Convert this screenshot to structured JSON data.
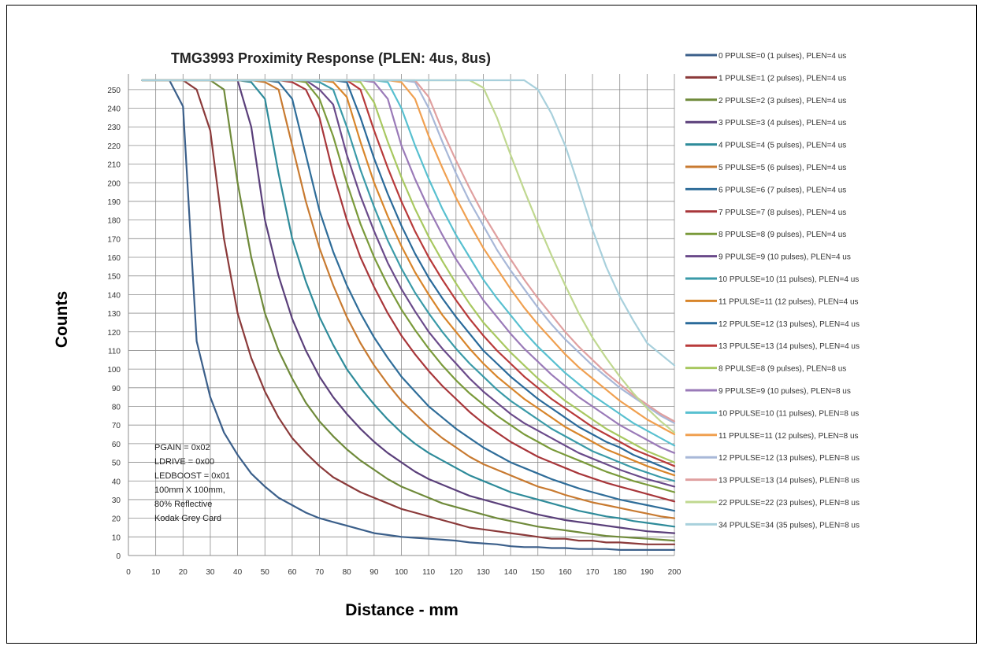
{
  "chart_data": {
    "type": "line",
    "title": "TMG3993 Proximity Response (PLEN: 4us, 8us)",
    "xlabel": "Distance - mm",
    "ylabel": "Counts",
    "xlim": [
      0,
      200
    ],
    "ylim": [
      0,
      255
    ],
    "x_ticks": [
      0,
      10,
      20,
      30,
      40,
      50,
      60,
      70,
      80,
      90,
      100,
      110,
      120,
      130,
      140,
      150,
      160,
      170,
      180,
      190,
      200
    ],
    "y_ticks": [
      0,
      10,
      20,
      30,
      40,
      50,
      60,
      70,
      80,
      90,
      100,
      110,
      120,
      130,
      140,
      150,
      160,
      170,
      180,
      190,
      200,
      210,
      220,
      230,
      240,
      250
    ],
    "grid": true,
    "legend_position": "right",
    "annotation": [
      "PGAIN = 0x02",
      "LDRIVE = 0x00",
      "LEDBOOST = 0x01",
      "100mm X 100mm,",
      "80% Reflective",
      "Kodak Grey Card"
    ],
    "x": [
      5,
      10,
      15,
      20,
      25,
      30,
      35,
      40,
      45,
      50,
      55,
      60,
      65,
      70,
      75,
      80,
      85,
      90,
      95,
      100,
      105,
      110,
      115,
      120,
      125,
      130,
      135,
      140,
      145,
      150,
      155,
      160,
      165,
      170,
      175,
      180,
      185,
      190,
      195,
      200
    ],
    "series": [
      {
        "name": "0 PPULSE=0 (1 pulses), PLEN=4 us",
        "color": "#3b5f8a",
        "values": [
          255,
          255,
          255,
          241,
          115,
          85,
          66,
          54,
          44,
          37,
          31,
          27,
          23,
          20,
          18,
          16,
          14,
          12,
          11,
          10,
          9.5,
          9,
          8.5,
          8,
          7,
          6.5,
          6,
          5,
          4.5,
          4.5,
          4,
          4,
          3.5,
          3.5,
          3.5,
          3,
          3,
          3,
          3,
          3
        ]
      },
      {
        "name": "1 PPULSE=1 (2 pulses), PLEN=4 us",
        "color": "#8b3a3a",
        "values": [
          255,
          255,
          255,
          255,
          250,
          228,
          170,
          130,
          106,
          88,
          74,
          63,
          55,
          48,
          42,
          38,
          34,
          31,
          28,
          25,
          23,
          21,
          19,
          17,
          15,
          14,
          13,
          12,
          11,
          10,
          9,
          9,
          8,
          8,
          7,
          7,
          6.5,
          6,
          6,
          6
        ]
      },
      {
        "name": "2 PPULSE=2 (3 pulses), PLEN=4 us",
        "color": "#6f8a3a",
        "values": [
          255,
          255,
          255,
          255,
          255,
          255,
          250,
          200,
          160,
          130,
          110,
          95,
          82,
          72,
          64,
          57,
          51,
          46,
          41,
          37,
          34,
          31,
          28,
          26,
          24,
          22,
          20,
          18.5,
          17,
          15.5,
          14.5,
          13.5,
          12.5,
          11.5,
          10.5,
          10,
          9.5,
          9,
          8.5,
          8
        ]
      },
      {
        "name": "3 PPULSE=3 (4 pulses), PLEN=4 us",
        "color": "#5a3f7a",
        "values": [
          255,
          255,
          255,
          255,
          255,
          255,
          255,
          255,
          230,
          180,
          150,
          127,
          110,
          96,
          85,
          76,
          68,
          61,
          55,
          50,
          45,
          41,
          38,
          35,
          32,
          30,
          28,
          26,
          24,
          22,
          20.5,
          19,
          18,
          17,
          16,
          15,
          14,
          13,
          12.5,
          12
        ]
      },
      {
        "name": "4 PPULSE=4 (5 pulses), PLEN=4 us",
        "color": "#2e8b9a",
        "values": [
          255,
          255,
          255,
          255,
          255,
          255,
          255,
          255,
          254,
          245,
          205,
          170,
          147,
          128,
          113,
          100,
          90,
          81,
          73,
          66,
          60,
          55,
          51,
          47,
          43,
          40,
          37,
          34,
          32,
          30,
          28,
          26,
          24,
          22.5,
          21,
          20,
          18.5,
          17.5,
          16.5,
          15.5
        ]
      },
      {
        "name": "5 PPULSE=5 (6 pulses), PLEN=4 us",
        "color": "#c87a30",
        "values": [
          255,
          255,
          255,
          255,
          255,
          255,
          255,
          255,
          255,
          254,
          250,
          220,
          190,
          165,
          145,
          128,
          114,
          102,
          92,
          83,
          76,
          69,
          63,
          58,
          53,
          49,
          46,
          43,
          40,
          37,
          35,
          32.5,
          30.5,
          28.5,
          27,
          25.5,
          24,
          22.5,
          21,
          20
        ]
      },
      {
        "name": "6 PPULSE=6 (7 pulses), PLEN=4 us",
        "color": "#2f6d99",
        "values": [
          255,
          255,
          255,
          255,
          255,
          255,
          255,
          255,
          255,
          255,
          254,
          245,
          215,
          185,
          163,
          145,
          130,
          117,
          106,
          96,
          88,
          80,
          74,
          68,
          63,
          58,
          54,
          50,
          47,
          44,
          41,
          38.5,
          36,
          34,
          32,
          30,
          28.5,
          27,
          25.5,
          24
        ]
      },
      {
        "name": "7 PPULSE=7 (8 pulses), PLEN=4 us",
        "color": "#a8363a",
        "values": [
          255,
          255,
          255,
          255,
          255,
          255,
          255,
          255,
          255,
          255,
          255,
          254,
          250,
          235,
          205,
          180,
          160,
          144,
          130,
          118,
          108,
          99,
          91,
          84,
          77,
          71,
          66,
          61,
          57,
          53,
          50,
          47,
          44,
          41.5,
          39,
          37,
          35,
          33,
          31,
          29
        ]
      },
      {
        "name": "8 PPULSE=8 (9 pulses), PLEN=4 us",
        "color": "#7a9a3a",
        "values": [
          255,
          255,
          255,
          255,
          255,
          255,
          255,
          255,
          255,
          255,
          255,
          255,
          254,
          245,
          225,
          200,
          178,
          160,
          145,
          132,
          121,
          111,
          102,
          94,
          87,
          81,
          75,
          70,
          65,
          61,
          57,
          54,
          51,
          48,
          45,
          42.5,
          40,
          38,
          36,
          34
        ]
      },
      {
        "name": "9 PPULSE=9 (10 pulses), PLEN=4 us",
        "color": "#6a4a8a",
        "values": [
          255,
          255,
          255,
          255,
          255,
          255,
          255,
          255,
          255,
          255,
          255,
          255,
          255,
          250,
          242,
          215,
          193,
          174,
          157,
          143,
          131,
          120,
          111,
          103,
          95,
          88,
          82,
          76,
          71,
          67,
          63,
          59,
          55,
          52,
          49,
          46,
          43.5,
          41,
          39,
          37
        ]
      },
      {
        "name": "10 PPULSE=10 (11 pulses), PLEN=4 us",
        "color": "#3a9aa8",
        "values": [
          255,
          255,
          255,
          255,
          255,
          255,
          255,
          255,
          255,
          255,
          255,
          255,
          255,
          254,
          250,
          230,
          207,
          187,
          169,
          154,
          141,
          130,
          120,
          111,
          103,
          96,
          89,
          83,
          78,
          73,
          68,
          64,
          60,
          56,
          53,
          50,
          47,
          44.5,
          42,
          40
        ]
      },
      {
        "name": "11 PPULSE=11 (12 pulses), PLEN=4 us",
        "color": "#d8852a",
        "values": [
          255,
          255,
          255,
          255,
          255,
          255,
          255,
          255,
          255,
          255,
          255,
          255,
          255,
          255,
          254,
          246,
          222,
          200,
          182,
          166,
          152,
          140,
          129,
          120,
          111,
          103,
          96,
          90,
          84,
          79,
          74,
          69,
          65,
          61,
          57,
          54,
          51,
          48,
          45.5,
          43
        ]
      },
      {
        "name": "12 PPULSE=12 (13 pulses), PLEN=4 us",
        "color": "#2a6a9a",
        "values": [
          255,
          255,
          255,
          255,
          255,
          255,
          255,
          255,
          255,
          255,
          255,
          255,
          255,
          255,
          255,
          254,
          235,
          213,
          194,
          177,
          162,
          149,
          138,
          128,
          119,
          110,
          103,
          96,
          90,
          84,
          79,
          74,
          69,
          65,
          61,
          58,
          54,
          51,
          48,
          45
        ]
      },
      {
        "name": "13 PPULSE=13 (14 pulses), PLEN=4 us",
        "color": "#b83a3a",
        "values": [
          255,
          255,
          255,
          255,
          255,
          255,
          255,
          255,
          255,
          255,
          255,
          255,
          255,
          255,
          255,
          255,
          250,
          228,
          208,
          190,
          174,
          160,
          148,
          137,
          127,
          118,
          110,
          103,
          96,
          90,
          84,
          79,
          74,
          69,
          65,
          61,
          57,
          54,
          51,
          48
        ]
      },
      {
        "name": "8 PPULSE=8 (9 pulses), PLEN=8 us",
        "color": "#a8c860",
        "values": [
          255,
          255,
          255,
          255,
          255,
          255,
          255,
          255,
          255,
          255,
          255,
          255,
          255,
          255,
          255,
          255,
          254,
          243,
          222,
          203,
          186,
          171,
          158,
          146,
          135,
          125,
          117,
          109,
          102,
          95,
          89,
          83,
          78,
          73,
          68,
          64,
          60,
          56,
          53,
          50
        ]
      },
      {
        "name": "9 PPULSE=9 (10 pulses), PLEN=8 us",
        "color": "#9a7ab8",
        "values": [
          255,
          255,
          255,
          255,
          255,
          255,
          255,
          255,
          255,
          255,
          255,
          255,
          255,
          255,
          255,
          255,
          255,
          254,
          245,
          220,
          202,
          186,
          172,
          159,
          148,
          137,
          128,
          119,
          111,
          104,
          97,
          91,
          85,
          80,
          75,
          70,
          66,
          62,
          58,
          55
        ]
      },
      {
        "name": "10 PPULSE=10 (11 pulses), PLEN=8 us",
        "color": "#58c0d0",
        "values": [
          255,
          255,
          255,
          255,
          255,
          255,
          255,
          255,
          255,
          255,
          255,
          255,
          255,
          255,
          255,
          255,
          255,
          255,
          254,
          240,
          220,
          202,
          186,
          172,
          160,
          148,
          138,
          129,
          120,
          112,
          105,
          98,
          92,
          86,
          81,
          76,
          71,
          67,
          63,
          59
        ]
      },
      {
        "name": "11 PPULSE=11 (12 pulses), PLEN=8 us",
        "color": "#f0a050",
        "values": [
          255,
          255,
          255,
          255,
          255,
          255,
          255,
          255,
          255,
          255,
          255,
          255,
          255,
          255,
          255,
          255,
          255,
          255,
          255,
          254,
          245,
          225,
          208,
          192,
          178,
          165,
          154,
          143,
          133,
          124,
          116,
          108,
          101,
          95,
          89,
          83,
          78,
          73,
          69,
          65
        ]
      },
      {
        "name": "12 PPULSE=12 (13 pulses), PLEN=8 us",
        "color": "#a8b8d8",
        "values": [
          255,
          255,
          255,
          255,
          255,
          255,
          255,
          255,
          255,
          255,
          255,
          255,
          255,
          255,
          255,
          255,
          255,
          255,
          255,
          255,
          254,
          240,
          222,
          205,
          190,
          177,
          164,
          153,
          143,
          133,
          124,
          116,
          109,
          102,
          96,
          90,
          85,
          80,
          75,
          71
        ]
      },
      {
        "name": "13 PPULSE=13 (14 pulses), PLEN=8 us",
        "color": "#e0a0a0",
        "values": [
          255,
          255,
          255,
          255,
          255,
          255,
          255,
          255,
          255,
          255,
          255,
          255,
          255,
          255,
          255,
          255,
          255,
          255,
          255,
          255,
          255,
          246,
          228,
          212,
          197,
          183,
          171,
          159,
          148,
          138,
          129,
          120,
          112,
          105,
          98,
          92,
          86,
          81,
          76,
          72
        ]
      },
      {
        "name": "22 PPULSE=22 (23 pulses), PLEN=8 us",
        "color": "#c0d890",
        "values": [
          255,
          255,
          255,
          255,
          255,
          255,
          255,
          255,
          255,
          255,
          255,
          255,
          255,
          255,
          255,
          255,
          255,
          255,
          255,
          255,
          255,
          255,
          255,
          255,
          255,
          251,
          235,
          215,
          196,
          178,
          161,
          145,
          130,
          117,
          106,
          96,
          87,
          79,
          72,
          66
        ]
      },
      {
        "name": "34 PPULSE=34 (35 pulses), PLEN=8 us",
        "color": "#a8d0dc",
        "values": [
          255,
          255,
          255,
          255,
          255,
          255,
          255,
          255,
          255,
          255,
          255,
          255,
          255,
          255,
          255,
          255,
          255,
          255,
          255,
          255,
          255,
          255,
          255,
          255,
          255,
          255,
          255,
          255,
          255,
          250,
          237,
          220,
          198,
          175,
          155,
          139,
          126,
          114,
          108,
          102
        ]
      }
    ]
  }
}
